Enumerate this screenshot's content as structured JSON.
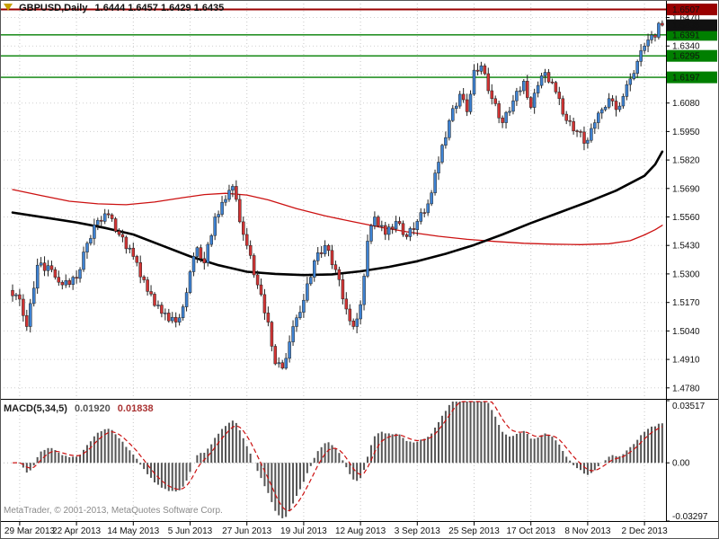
{
  "header": {
    "symbol": "GBPUSD,Daily",
    "values": "1.6444 1.6457 1.6429 1.6435"
  },
  "indicator": {
    "name": "MACD(5,34,5)",
    "value": "0.01920",
    "signal": "0.01838"
  },
  "watermark": {
    "text": "MetaTrader, © 2001-2013, MetaQuotes Software Corp."
  },
  "chart_data": {
    "type": "candlestick",
    "title": "GBPUSD,Daily",
    "y_range_main": [
      1.473,
      1.655
    ],
    "y_range_macd": [
      -0.03297,
      0.03517
    ],
    "y_ticks_main": [
      "1.6470",
      "1.6340",
      "1.6080",
      "1.5950",
      "1.5820",
      "1.5690",
      "1.5560",
      "1.5430",
      "1.5300",
      "1.5170",
      "1.5040",
      "1.4910",
      "1.4780"
    ],
    "y_grid_main": [
      1.647,
      1.634,
      1.621,
      1.608,
      1.595,
      1.582,
      1.569,
      1.556,
      1.543,
      1.53,
      1.517,
      1.504,
      1.491,
      1.478
    ],
    "y_ticks_macd": [
      "0.03517",
      "0.00",
      "-0.03297"
    ],
    "x_axis": {
      "labels": [
        "29 Mar 2013",
        "22 Apr 2013",
        "14 May 2013",
        "5 Jun 2013",
        "27 Jun 2013",
        "19 Jul 2013",
        "12 Aug 2013",
        "3 Sep 2013",
        "25 Sep 2013",
        "17 Oct 2013",
        "8 Nov 2013",
        "2 Dec 2013"
      ],
      "indices": [
        2,
        18,
        34,
        50,
        66,
        82,
        98,
        114,
        130,
        146,
        162,
        178
      ]
    },
    "first_open": 1.5225,
    "closes": [
      1.52,
      1.5205,
      1.5185,
      1.511,
      1.506,
      1.5165,
      1.5235,
      1.534,
      1.535,
      1.5315,
      1.5338,
      1.532,
      1.5285,
      1.5262,
      1.525,
      1.527,
      1.5252,
      1.5285,
      1.528,
      1.532,
      1.54,
      1.544,
      1.5462,
      1.5524,
      1.5545,
      1.554,
      1.5575,
      1.557,
      1.5552,
      1.5495,
      1.548,
      1.5468,
      1.5415,
      1.5418,
      1.538,
      1.5352,
      1.5287,
      1.5273,
      1.522,
      1.5208,
      1.5156,
      1.5158,
      1.512,
      1.5122,
      1.5086,
      1.5102,
      1.508,
      1.51,
      1.515,
      1.5215,
      1.531,
      1.538,
      1.542,
      1.537,
      1.535,
      1.5435,
      1.5475,
      1.556,
      1.5572,
      1.5627,
      1.564,
      1.5682,
      1.57,
      1.564,
      1.5538,
      1.548,
      1.543,
      1.5384,
      1.5296,
      1.525,
      1.5206,
      1.5122,
      1.508,
      1.497,
      1.489,
      1.4895,
      1.487,
      1.4915,
      1.499,
      1.506,
      1.51,
      1.5125,
      1.518,
      1.5255,
      1.5285,
      1.536,
      1.5397,
      1.5392,
      1.543,
      1.5407,
      1.5342,
      1.532,
      1.5274,
      1.5186,
      1.514,
      1.5086,
      1.506,
      1.5095,
      1.516,
      1.529,
      1.545,
      1.552,
      1.556,
      1.5518,
      1.5521,
      1.548,
      1.5514,
      1.5505,
      1.554,
      1.553,
      1.5479,
      1.547,
      1.5507,
      1.5502,
      1.554,
      1.558,
      1.5579,
      1.562,
      1.567,
      1.576,
      1.581,
      1.5887,
      1.5922,
      1.6,
      1.6055,
      1.6066,
      1.612,
      1.6095,
      1.604,
      1.612,
      1.623,
      1.6225,
      1.625,
      1.6214,
      1.6136,
      1.61,
      1.6077,
      1.6012,
      1.599,
      1.6037,
      1.6042,
      1.609,
      1.6134,
      1.6136,
      1.618,
      1.6105,
      1.606,
      1.6125,
      1.616,
      1.6204,
      1.622,
      1.6176,
      1.6174,
      1.613,
      1.61,
      1.6029,
      1.6,
      1.5996,
      1.5953,
      1.595,
      1.5948,
      1.5896,
      1.591,
      1.5964,
      1.599,
      1.6034,
      1.605,
      1.6061,
      1.61,
      1.6089,
      1.605,
      1.6066,
      1.611,
      1.6164,
      1.619,
      1.6215,
      1.627,
      1.6319,
      1.634,
      1.6368,
      1.639,
      1.638,
      1.6444,
      1.6435
    ],
    "last_candle": {
      "open": 1.6444,
      "high": 1.6457,
      "low": 1.6429,
      "close": 1.6435
    },
    "hlines": [
      {
        "price": 1.6507,
        "label": "1.6507",
        "color": "#990000",
        "width": 2
      },
      {
        "price": 1.6391,
        "label": "1.6391",
        "color": "#007f00",
        "width": 1.4
      },
      {
        "price": 1.6295,
        "label": "1.6295",
        "color": "#007f00",
        "width": 1.4
      },
      {
        "price": 1.6197,
        "label": "1.6197",
        "color": "#007f00",
        "width": 1.4
      }
    ],
    "current_price": {
      "price": 1.6435,
      "label": "1.6435"
    },
    "ma_lines": [
      {
        "name": "ma-fast-red",
        "color": "#cc1111",
        "width": 1.3,
        "points": [
          [
            0,
            1.5685
          ],
          [
            8,
            1.5658
          ],
          [
            16,
            1.5632
          ],
          [
            24,
            1.562
          ],
          [
            32,
            1.5616
          ],
          [
            40,
            1.5628
          ],
          [
            48,
            1.5648
          ],
          [
            54,
            1.5662
          ],
          [
            60,
            1.5668
          ],
          [
            66,
            1.566
          ],
          [
            72,
            1.5638
          ],
          [
            80,
            1.5598
          ],
          [
            88,
            1.5565
          ],
          [
            96,
            1.5538
          ],
          [
            104,
            1.5512
          ],
          [
            112,
            1.549
          ],
          [
            120,
            1.5472
          ],
          [
            128,
            1.5458
          ],
          [
            136,
            1.5448
          ],
          [
            144,
            1.544
          ],
          [
            152,
            1.5436
          ],
          [
            160,
            1.5434
          ],
          [
            168,
            1.5438
          ],
          [
            174,
            1.5452
          ],
          [
            178,
            1.5478
          ],
          [
            181,
            1.5502
          ],
          [
            183,
            1.5522
          ]
        ]
      },
      {
        "name": "ma-slow-black",
        "color": "#000000",
        "width": 2.6,
        "points": [
          [
            0,
            1.558
          ],
          [
            10,
            1.5555
          ],
          [
            18,
            1.5535
          ],
          [
            26,
            1.551
          ],
          [
            34,
            1.548
          ],
          [
            42,
            1.543
          ],
          [
            50,
            1.538
          ],
          [
            58,
            1.534
          ],
          [
            66,
            1.531
          ],
          [
            74,
            1.53
          ],
          [
            82,
            1.5295
          ],
          [
            90,
            1.5298
          ],
          [
            98,
            1.5312
          ],
          [
            106,
            1.5332
          ],
          [
            114,
            1.5358
          ],
          [
            122,
            1.5392
          ],
          [
            130,
            1.5432
          ],
          [
            138,
            1.548
          ],
          [
            146,
            1.5532
          ],
          [
            154,
            1.558
          ],
          [
            162,
            1.5628
          ],
          [
            170,
            1.568
          ],
          [
            178,
            1.5748
          ],
          [
            181,
            1.58
          ],
          [
            183,
            1.5858
          ]
        ]
      }
    ],
    "macd": {
      "fast": 5,
      "slow": 34,
      "signal": 5,
      "histogram_color": "#555555",
      "signal_color": "#cc1111"
    },
    "colors": {
      "up": "#3e82d2",
      "down": "#d23434",
      "grid": "#c8c8c8",
      "background": "#ffffff"
    }
  }
}
